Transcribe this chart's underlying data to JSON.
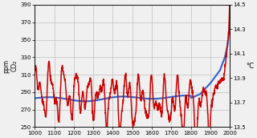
{
  "title": "",
  "ylabel_left": "ppm\nCO₂",
  "ylabel_right": "°C",
  "xlim": [
    1000,
    2000
  ],
  "ylim_left": [
    250,
    390
  ],
  "ylim_right": [
    13.5,
    14.5
  ],
  "yticks_left": [
    250,
    270,
    290,
    310,
    330,
    350,
    370,
    390
  ],
  "yticks_right": [
    13.5,
    13.7,
    13.9,
    14.1,
    14.3,
    14.5
  ],
  "xticks": [
    1000,
    1100,
    1200,
    1300,
    1400,
    1500,
    1600,
    1700,
    1800,
    1900,
    2000
  ],
  "co2_color": "#3060cc",
  "temp_color": "#cc0000",
  "background_color": "#f0f0f0",
  "grid_color": "#c0c0c0",
  "linewidth_co2": 1.5,
  "linewidth_temp": 1.1
}
